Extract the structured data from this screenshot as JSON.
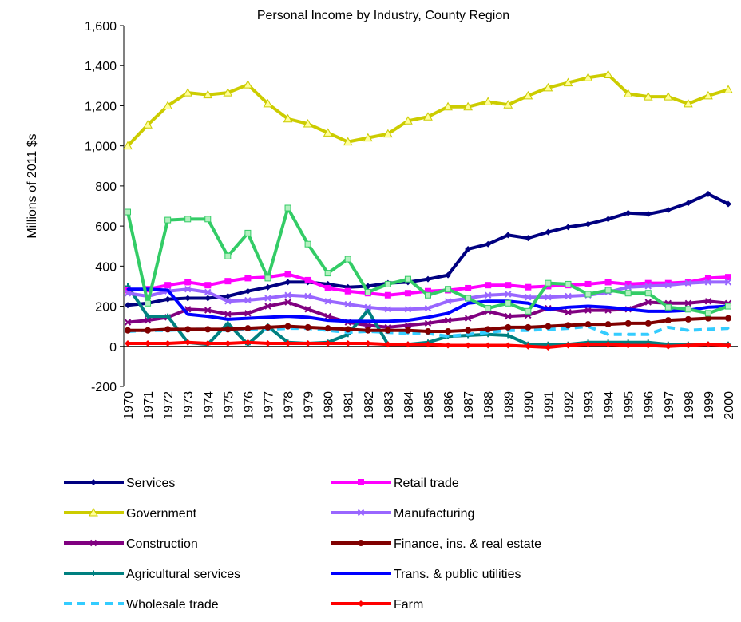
{
  "chart_data": {
    "type": "line",
    "title": "Personal Income by Industry, County Region",
    "y_label": "Millions of 2011 $s",
    "categories": [
      "1970",
      "1971",
      "1972",
      "1973",
      "1974",
      "1975",
      "1976",
      "1977",
      "1978",
      "1979",
      "1980",
      "1981",
      "1982",
      "1983",
      "1984",
      "1985",
      "1986",
      "1987",
      "1988",
      "1989",
      "1990",
      "1991",
      "1992",
      "1993",
      "1994",
      "1995",
      "1996",
      "1997",
      "1998",
      "1999",
      "2000"
    ],
    "ylim": [
      -200,
      1600
    ],
    "yticks": [
      -200,
      0,
      200,
      400,
      600,
      800,
      {
        "value": 1000,
        "label": "1,000"
      },
      {
        "value": 1200,
        "label": "1,200"
      },
      {
        "value": 1400,
        "label": "1,400"
      },
      {
        "value": 1600,
        "label": "1,600"
      }
    ],
    "grid": false,
    "series": [
      {
        "name": "Services",
        "color": "#000080",
        "marker": "diamond",
        "values": [
          205,
          215,
          235,
          240,
          240,
          250,
          275,
          295,
          320,
          320,
          310,
          295,
          300,
          315,
          320,
          335,
          355,
          485,
          510,
          555,
          540,
          570,
          595,
          610,
          635,
          665,
          660,
          680,
          715,
          760,
          710
        ]
      },
      {
        "name": "Government",
        "color": "#cccc00",
        "marker": "triangle",
        "values": [
          1000,
          1105,
          1200,
          1265,
          1255,
          1265,
          1305,
          1210,
          1135,
          1110,
          1065,
          1020,
          1040,
          1060,
          1125,
          1145,
          1195,
          1195,
          1220,
          1205,
          1250,
          1290,
          1315,
          1340,
          1355,
          1260,
          1245,
          1245,
          1210,
          1250,
          1280
        ]
      },
      {
        "name": "Construction",
        "color": "#800080",
        "marker": "cross",
        "values": [
          120,
          130,
          145,
          185,
          180,
          160,
          165,
          200,
          220,
          185,
          150,
          120,
          105,
          95,
          105,
          115,
          130,
          140,
          175,
          150,
          155,
          190,
          170,
          180,
          180,
          185,
          220,
          215,
          215,
          225,
          215
        ]
      },
      {
        "name": "Agricultural services",
        "color": "#008080",
        "marker": "plus",
        "values": [
          300,
          150,
          150,
          20,
          10,
          115,
          10,
          100,
          20,
          15,
          20,
          60,
          180,
          10,
          10,
          20,
          50,
          55,
          60,
          55,
          10,
          10,
          10,
          20,
          20,
          20,
          20,
          10,
          10,
          10,
          10
        ]
      },
      {
        "name": "Wholesale trade",
        "color": "#33ccff",
        "marker": "none",
        "dashed": true,
        "values": [
          75,
          80,
          80,
          85,
          85,
          80,
          85,
          85,
          90,
          90,
          80,
          70,
          75,
          70,
          65,
          65,
          50,
          60,
          70,
          80,
          80,
          85,
          90,
          100,
          60,
          60,
          60,
          95,
          80,
          85,
          90
        ]
      },
      {
        "name": "Retail trade",
        "color": "#ff00ff",
        "marker": "square",
        "values": [
          280,
          285,
          305,
          320,
          305,
          325,
          340,
          345,
          360,
          330,
          290,
          275,
          265,
          255,
          265,
          275,
          280,
          290,
          305,
          305,
          295,
          300,
          305,
          310,
          320,
          310,
          315,
          315,
          320,
          340,
          345
        ]
      },
      {
        "name": "Manufacturing",
        "color": "#9966ff",
        "marker": "cross",
        "values": [
          265,
          250,
          275,
          285,
          270,
          225,
          230,
          240,
          255,
          250,
          225,
          210,
          195,
          185,
          185,
          190,
          225,
          240,
          255,
          260,
          245,
          245,
          250,
          255,
          270,
          295,
          300,
          305,
          315,
          320,
          320
        ]
      },
      {
        "name": "Finance, ins. & real estate",
        "color": "#800000",
        "marker": "circle",
        "values": [
          80,
          80,
          85,
          85,
          85,
          85,
          90,
          95,
          100,
          95,
          90,
          85,
          80,
          80,
          80,
          75,
          75,
          80,
          85,
          95,
          95,
          100,
          105,
          110,
          110,
          115,
          115,
          130,
          135,
          140,
          140
        ]
      },
      {
        "name": "Trans. & public utilities",
        "color": "#0000ff",
        "marker": "none",
        "values": [
          285,
          285,
          280,
          160,
          150,
          135,
          140,
          145,
          150,
          145,
          130,
          125,
          125,
          125,
          130,
          145,
          165,
          215,
          225,
          225,
          215,
          185,
          195,
          200,
          195,
          185,
          175,
          175,
          180,
          195,
          200
        ]
      },
      {
        "name": "Farm",
        "color": "#ff0000",
        "marker": "diamond",
        "values": [
          15,
          15,
          15,
          20,
          15,
          15,
          20,
          15,
          15,
          15,
          15,
          15,
          15,
          10,
          10,
          10,
          5,
          5,
          5,
          5,
          0,
          -5,
          5,
          10,
          10,
          5,
          5,
          0,
          5,
          10,
          5
        ]
      },
      {
        "name": null,
        "color": "#33cc66",
        "marker": "square",
        "values": [
          670,
          215,
          630,
          635,
          635,
          450,
          565,
          340,
          690,
          510,
          365,
          435,
          270,
          310,
          335,
          255,
          285,
          240,
          190,
          215,
          175,
          315,
          310,
          260,
          280,
          265,
          265,
          195,
          185,
          165,
          200
        ]
      }
    ]
  }
}
